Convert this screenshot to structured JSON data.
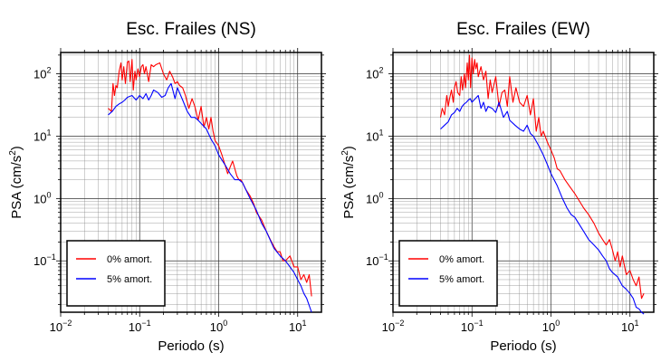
{
  "figure": {
    "panels": [
      {
        "title": "Esc. Frailes (NS)"
      },
      {
        "title": "Esc. Frailes (EW)"
      }
    ]
  },
  "chart_data": [
    {
      "type": "line",
      "title": "Esc. Frailes (NS)",
      "xlabel": "Periodo (s)",
      "ylabel_base": "PSA (cm/s",
      "ylabel_exp": "2",
      "ylabel_close": ")",
      "xscale": "log",
      "yscale": "log",
      "xlim": [
        0.01,
        20
      ],
      "ylim": [
        0.015,
        220
      ],
      "grid": true,
      "legend_position": "bottom-left",
      "x_ticks": [
        {
          "value": 0.01,
          "base": "10",
          "exp": "−2"
        },
        {
          "value": 0.1,
          "base": "10",
          "exp": "−1"
        },
        {
          "value": 1,
          "base": "10",
          "exp": "0"
        },
        {
          "value": 10,
          "base": "10",
          "exp": "1"
        }
      ],
      "y_ticks": [
        {
          "value": 0.1,
          "base": "10",
          "exp": "−1"
        },
        {
          "value": 1,
          "base": "10",
          "exp": "0"
        },
        {
          "value": 10,
          "base": "10",
          "exp": "1"
        },
        {
          "value": 100,
          "base": "10",
          "exp": "2"
        }
      ],
      "series": [
        {
          "name": "0% amort.",
          "color": "#ff0000",
          "x": [
            0.04,
            0.044,
            0.046,
            0.048,
            0.05,
            0.052,
            0.055,
            0.058,
            0.06,
            0.063,
            0.066,
            0.07,
            0.073,
            0.076,
            0.08,
            0.083,
            0.087,
            0.09,
            0.095,
            0.1,
            0.105,
            0.11,
            0.115,
            0.12,
            0.13,
            0.14,
            0.15,
            0.16,
            0.18,
            0.2,
            0.22,
            0.24,
            0.26,
            0.28,
            0.3,
            0.32,
            0.35,
            0.38,
            0.42,
            0.46,
            0.5,
            0.55,
            0.6,
            0.65,
            0.7,
            0.75,
            0.8,
            0.85,
            0.9,
            1.0,
            1.1,
            1.2,
            1.3,
            1.4,
            1.5,
            1.7,
            1.8,
            1.9,
            2.0,
            2.2,
            2.5,
            2.8,
            3.0,
            3.5,
            4.0,
            4.5,
            5.0,
            5.5,
            6.0,
            6.5,
            7.0,
            8.0,
            9.0,
            10.0,
            11.0,
            12.0,
            13.0,
            14.0,
            15.0
          ],
          "values": [
            28,
            25,
            70,
            45,
            65,
            60,
            110,
            150,
            80,
            130,
            70,
            155,
            160,
            75,
            170,
            55,
            110,
            80,
            120,
            90,
            130,
            140,
            100,
            130,
            75,
            140,
            130,
            140,
            150,
            100,
            80,
            110,
            90,
            70,
            75,
            65,
            60,
            45,
            28,
            40,
            30,
            18,
            30,
            14,
            20,
            13,
            20,
            12,
            8.5,
            7,
            5,
            3.5,
            2.5,
            3.2,
            4,
            2.3,
            2,
            2,
            1.8,
            1.4,
            1.1,
            0.8,
            0.6,
            0.45,
            0.3,
            0.22,
            0.17,
            0.14,
            0.14,
            0.1,
            0.1,
            0.12,
            0.08,
            0.08,
            0.05,
            0.06,
            0.045,
            0.06,
            0.027
          ]
        },
        {
          "name": "5% amort.",
          "color": "#0000ff",
          "x": [
            0.04,
            0.045,
            0.05,
            0.055,
            0.06,
            0.065,
            0.07,
            0.08,
            0.09,
            0.1,
            0.11,
            0.12,
            0.13,
            0.14,
            0.15,
            0.17,
            0.19,
            0.21,
            0.23,
            0.25,
            0.28,
            0.3,
            0.35,
            0.4,
            0.45,
            0.5,
            0.55,
            0.6,
            0.7,
            0.8,
            0.9,
            1.0,
            1.2,
            1.4,
            1.6,
            1.8,
            2.0,
            2.5,
            3.0,
            3.5,
            4.0,
            5.0,
            6.0,
            7.0,
            8.0,
            9.0,
            10.0,
            11.0,
            12.0,
            13.0,
            15.0
          ],
          "values": [
            22,
            25,
            30,
            33,
            35,
            38,
            42,
            45,
            38,
            45,
            40,
            48,
            38,
            45,
            55,
            50,
            42,
            45,
            60,
            70,
            40,
            60,
            38,
            25,
            20,
            20,
            18,
            16,
            13,
            9,
            7,
            5,
            3.5,
            2.5,
            2.0,
            2.0,
            1.8,
            1.0,
            0.65,
            0.4,
            0.3,
            0.16,
            0.12,
            0.1,
            0.08,
            0.065,
            0.05,
            0.04,
            0.03,
            0.025,
            0.015
          ]
        }
      ]
    },
    {
      "type": "line",
      "title": "Esc. Frailes (EW)",
      "xlabel": "Periodo (s)",
      "ylabel_base": "PSA (cm/s",
      "ylabel_exp": "2",
      "ylabel_close": ")",
      "xscale": "log",
      "yscale": "log",
      "xlim": [
        0.01,
        20
      ],
      "ylim": [
        0.015,
        220
      ],
      "grid": true,
      "legend_position": "bottom-left",
      "x_ticks": [
        {
          "value": 0.01,
          "base": "10",
          "exp": "−2"
        },
        {
          "value": 0.1,
          "base": "10",
          "exp": "−1"
        },
        {
          "value": 1,
          "base": "10",
          "exp": "0"
        },
        {
          "value": 10,
          "base": "10",
          "exp": "1"
        }
      ],
      "y_ticks": [
        {
          "value": 0.1,
          "base": "10",
          "exp": "−1"
        },
        {
          "value": 1,
          "base": "10",
          "exp": "0"
        },
        {
          "value": 10,
          "base": "10",
          "exp": "1"
        },
        {
          "value": 100,
          "base": "10",
          "exp": "2"
        }
      ],
      "series": [
        {
          "name": "0% amort.",
          "color": "#ff0000",
          "x": [
            0.04,
            0.042,
            0.045,
            0.048,
            0.05,
            0.052,
            0.055,
            0.058,
            0.06,
            0.063,
            0.066,
            0.07,
            0.073,
            0.076,
            0.08,
            0.083,
            0.087,
            0.09,
            0.093,
            0.096,
            0.1,
            0.104,
            0.108,
            0.112,
            0.116,
            0.12,
            0.13,
            0.14,
            0.15,
            0.16,
            0.17,
            0.18,
            0.2,
            0.22,
            0.24,
            0.26,
            0.28,
            0.3,
            0.33,
            0.36,
            0.4,
            0.45,
            0.5,
            0.55,
            0.6,
            0.65,
            0.7,
            0.75,
            0.8,
            0.9,
            1.0,
            1.1,
            1.2,
            1.3,
            1.5,
            1.7,
            2.0,
            2.3,
            2.6,
            3.0,
            3.5,
            4.0,
            4.5,
            5.0,
            5.5,
            6.0,
            6.5,
            7.0,
            7.5,
            8.0,
            9.0,
            10.0,
            11.0,
            12.0,
            13.0,
            14.0,
            15.0
          ],
          "values": [
            20,
            28,
            22,
            45,
            30,
            40,
            55,
            35,
            60,
            75,
            50,
            45,
            90,
            55,
            100,
            60,
            150,
            80,
            200,
            60,
            180,
            100,
            170,
            120,
            150,
            90,
            130,
            80,
            110,
            40,
            80,
            50,
            90,
            30,
            50,
            55,
            30,
            90,
            35,
            60,
            35,
            30,
            45,
            22,
            40,
            12,
            20,
            10,
            12,
            8,
            6,
            4.5,
            3,
            2.8,
            2,
            1.6,
            1.2,
            0.9,
            0.7,
            0.55,
            0.4,
            0.28,
            0.22,
            0.18,
            0.22,
            0.15,
            0.1,
            0.14,
            0.08,
            0.12,
            0.06,
            0.07,
            0.05,
            0.04,
            0.055,
            0.025,
            0.03
          ]
        },
        {
          "name": "5% amort.",
          "color": "#0000ff",
          "x": [
            0.04,
            0.045,
            0.05,
            0.055,
            0.06,
            0.065,
            0.07,
            0.075,
            0.08,
            0.085,
            0.09,
            0.095,
            0.1,
            0.11,
            0.12,
            0.13,
            0.14,
            0.15,
            0.16,
            0.18,
            0.2,
            0.22,
            0.25,
            0.28,
            0.3,
            0.35,
            0.4,
            0.45,
            0.5,
            0.55,
            0.6,
            0.7,
            0.8,
            0.9,
            1.0,
            1.2,
            1.4,
            1.6,
            1.8,
            2.0,
            2.5,
            3.0,
            3.5,
            4.0,
            4.5,
            5.0,
            5.5,
            6.0,
            7.0,
            8.0,
            9.0,
            10.0,
            11.0,
            12.0,
            13.0,
            14.0,
            15.0
          ],
          "values": [
            13,
            15,
            17,
            22,
            24,
            28,
            25,
            30,
            33,
            35,
            38,
            40,
            35,
            40,
            45,
            28,
            35,
            25,
            30,
            28,
            24,
            35,
            20,
            25,
            18,
            15,
            13,
            12,
            15,
            11,
            10,
            7,
            5,
            3.5,
            2.5,
            1.6,
            1.0,
            0.7,
            0.55,
            0.5,
            0.32,
            0.22,
            0.18,
            0.15,
            0.12,
            0.1,
            0.075,
            0.065,
            0.055,
            0.04,
            0.035,
            0.03,
            0.025,
            0.018,
            0.017,
            0.015,
            0.014
          ]
        }
      ]
    }
  ]
}
